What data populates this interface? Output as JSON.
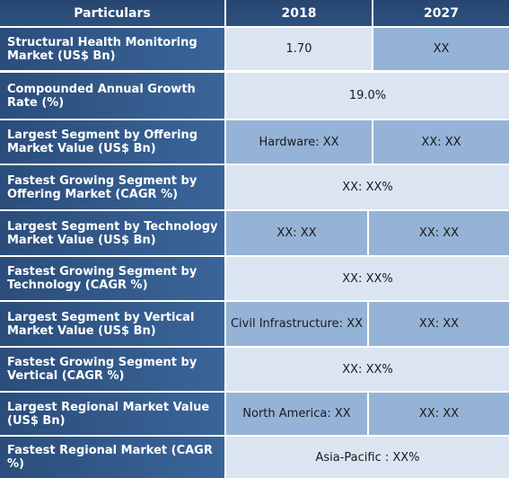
{
  "header": {
    "col_particulars": "Particulars",
    "col_2018": "2018",
    "col_2027": "2027"
  },
  "rows": [
    {
      "label": "Structural Health Monitoring Market (US$ Bn)",
      "v2018": "1.70",
      "v2027": "XX"
    },
    {
      "label": "Compounded Annual Growth Rate (%)",
      "merged": "19.0%"
    },
    {
      "label": "Largest Segment by Offering Market Value (US$ Bn)",
      "v2018": "Hardware: XX",
      "v2027": "XX: XX"
    },
    {
      "label": "Fastest Growing Segment by Offering Market (CAGR %)",
      "merged": "XX: XX%"
    },
    {
      "label": "Largest Segment by Technology Market Value (US$ Bn)",
      "v2018": "XX: XX",
      "v2027": "XX: XX"
    },
    {
      "label": "Fastest Growing Segment by Technology (CAGR %)",
      "merged": "XX: XX%"
    },
    {
      "label": "Largest Segment by Vertical Market Value (US$ Bn)",
      "v2018": "Civil Infrastructure: XX",
      "v2027": "XX: XX"
    },
    {
      "label": "Fastest Growing Segment by Vertical (CAGR %)",
      "merged": "XX: XX%"
    },
    {
      "label": "Largest Regional Market Value (US$ Bn)",
      "v2018": "North America: XX",
      "v2027": "XX: XX"
    },
    {
      "label": "Fastest Regional Market (CAGR %)",
      "merged": "Asia-Pacific : XX%"
    }
  ]
}
